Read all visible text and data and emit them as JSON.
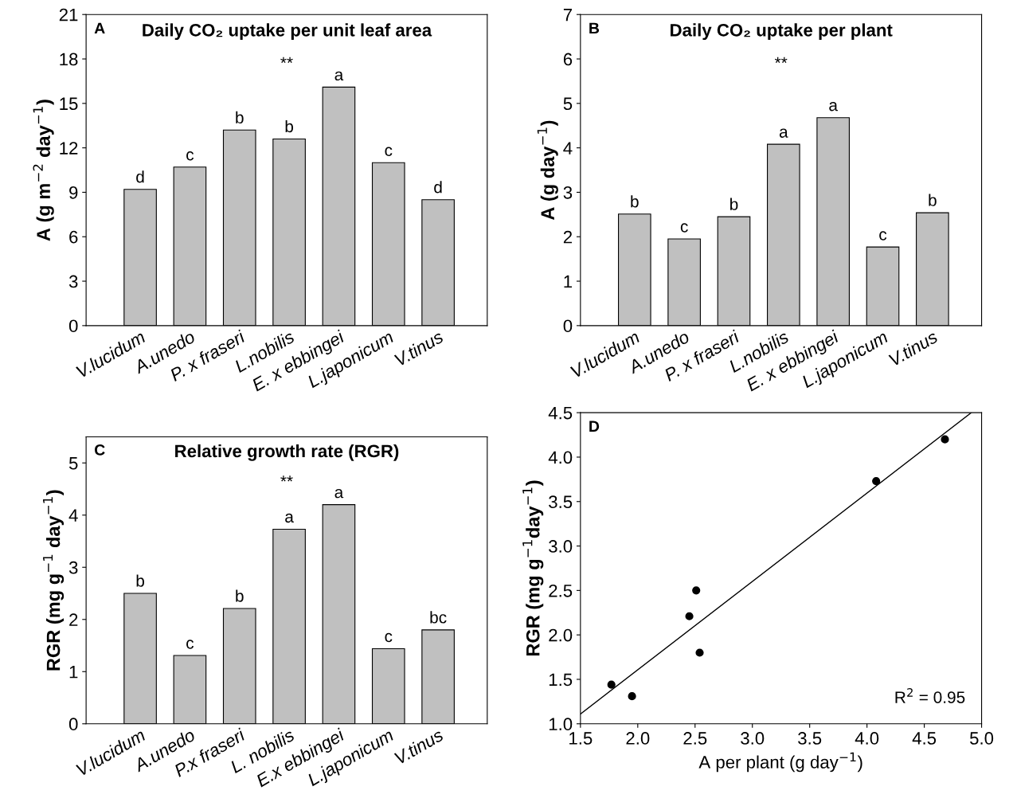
{
  "chart_data": [
    {
      "type": "bar",
      "title": "Daily CO₂ uptake per unit leaf area",
      "ylabel": "A (g m$^{−2}$ day$^{−1}$)",
      "categories": [
        "V.lucidum",
        "A.unedo",
        "P. x fraseri",
        "L.nobilis",
        "E. x ebbingei",
        "L.japonicum",
        "V.tinus"
      ],
      "values": [
        9.2,
        10.7,
        13.2,
        12.6,
        16.1,
        11.0,
        8.5
      ],
      "color": "#c0c0c0",
      "value_labels": [
        "d",
        "c",
        "b",
        "b",
        "a",
        "c",
        "d"
      ],
      "ylim": [
        0,
        21
      ],
      "yticks": [
        0,
        3,
        6,
        9,
        12,
        15,
        18,
        21
      ],
      "grid": false,
      "annotations": [
        "A",
        "**"
      ]
    },
    {
      "type": "bar",
      "title": "Daily CO₂ uptake per plant",
      "ylabel": "A (g day$^{−1}$)",
      "categories": [
        "V.lucidum",
        "A.unedo",
        "P. x fraseri",
        "L.nobilis",
        "E. x ebbingei",
        "L.japonicum",
        "V.tinus"
      ],
      "values": [
        2.51,
        1.95,
        2.45,
        4.08,
        4.68,
        1.77,
        2.54
      ],
      "color": "#c0c0c0",
      "value_labels": [
        "b",
        "c",
        "b",
        "a",
        "a",
        "c",
        "b"
      ],
      "ylim": [
        0,
        7
      ],
      "yticks": [
        0,
        1,
        2,
        3,
        4,
        5,
        6,
        7
      ],
      "grid": false,
      "annotations": [
        "B",
        "**"
      ]
    },
    {
      "type": "bar",
      "title": "Relative growth rate (RGR)",
      "ylabel": "RGR (mg g$^{−1}$ day$^{−1}$)",
      "categories": [
        "V.lucidum",
        "A.unedo",
        "P.x fraseri",
        "L. nobilis",
        "E.x ebbingei",
        "L.japonicum",
        "V.tinus"
      ],
      "values": [
        2.5,
        1.31,
        2.21,
        3.73,
        4.2,
        1.44,
        1.8
      ],
      "color": "#c0c0c0",
      "value_labels": [
        "b",
        "c",
        "b",
        "a",
        "a",
        "c",
        "bc"
      ],
      "ylim": [
        0,
        5.5
      ],
      "yticks": [
        0,
        1,
        2,
        3,
        4,
        5
      ],
      "grid": false,
      "annotations": [
        "C",
        "**"
      ]
    },
    {
      "type": "scatter",
      "xlabel": "A per plant (g day$^{−1}$)",
      "ylabel": "RGR (mg g$^{−1}$day$^{−1}$)",
      "series": [
        {
          "type": "scatter",
          "color": "#000000",
          "marker": "circle",
          "x": [
            2.51,
            1.95,
            2.45,
            4.08,
            4.68,
            1.77,
            2.54
          ],
          "values": [
            2.5,
            1.31,
            2.21,
            3.73,
            4.2,
            1.44,
            1.8
          ]
        },
        {
          "type": "line",
          "color": "#000000",
          "line_style": "solid",
          "marker": "none",
          "x": [
            1.5,
            4.91
          ],
          "values": [
            1.11,
            4.5
          ]
        }
      ],
      "xlim": [
        1.5,
        5.0
      ],
      "xticks": [
        1.5,
        {
          "value": 2,
          "label": "2.0"
        },
        2.5,
        {
          "value": 3,
          "label": "3.0"
        },
        3.5,
        {
          "value": 4,
          "label": "4.0"
        },
        4.5,
        {
          "value": 5,
          "label": "5.0"
        }
      ],
      "ylim": [
        1.0,
        4.5
      ],
      "yticks": [
        {
          "value": 1,
          "label": "1.0"
        },
        1.5,
        {
          "value": 2,
          "label": "2.0"
        },
        2.5,
        {
          "value": 3,
          "label": "3.0"
        },
        3.5,
        {
          "value": 4,
          "label": "4.0"
        },
        4.5
      ],
      "grid": false,
      "annotations": [
        "D",
        "R$^{2}$ = 0.95"
      ]
    }
  ]
}
